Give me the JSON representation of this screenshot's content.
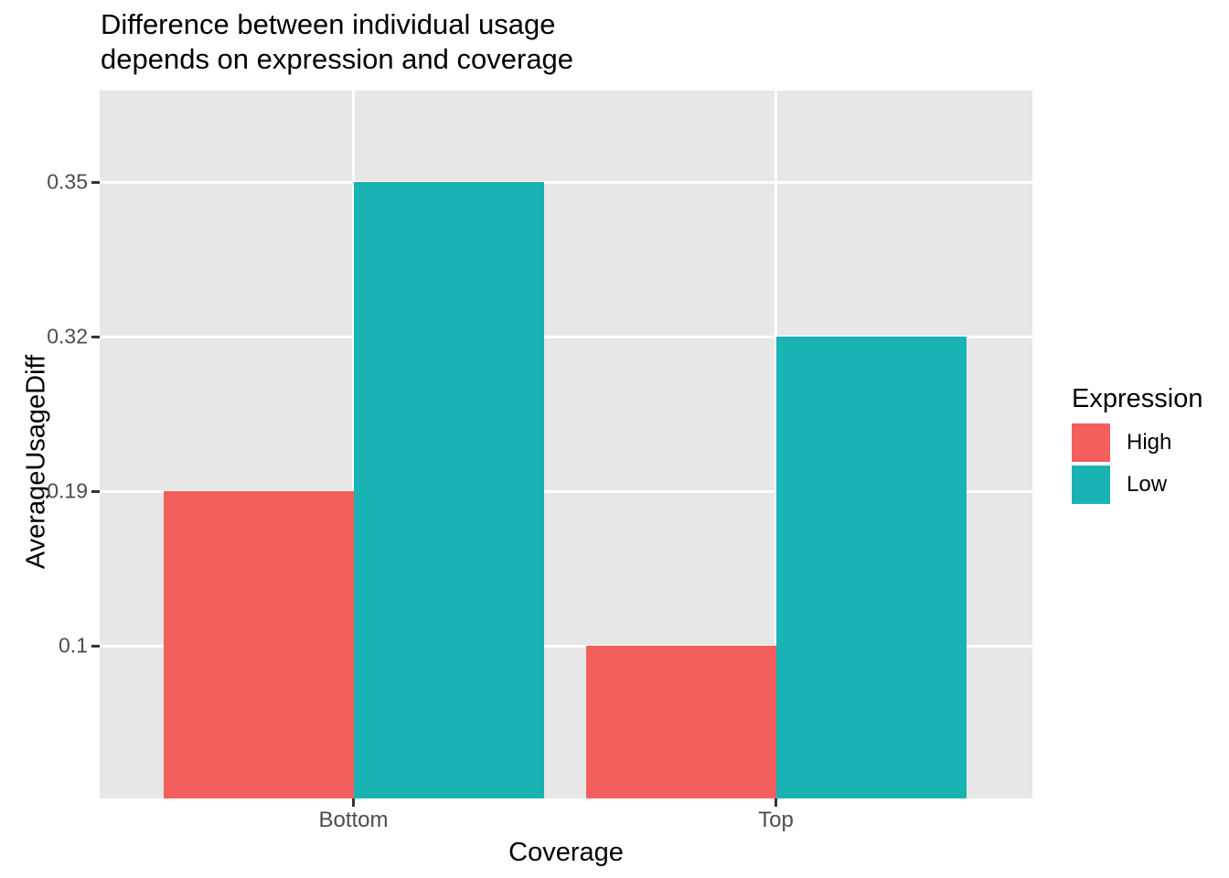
{
  "title": {
    "line1": "Difference between individual usage",
    "line2": "depends on expression and coverage"
  },
  "chart_data": {
    "type": "bar",
    "title": "Difference between individual usage depends on expression and coverage",
    "xlabel": "Coverage",
    "ylabel": "AverageUsageDiff",
    "categories": [
      "Bottom",
      "Top"
    ],
    "series": [
      {
        "name": "High",
        "color": "#F25F5C",
        "values": [
          0.19,
          0.1
        ]
      },
      {
        "name": "Low",
        "color": "#1AB3B4",
        "values": [
          0.35,
          0.32
        ]
      }
    ],
    "yticks": [
      0.35,
      0.32,
      0.19,
      0.1
    ],
    "yticks_evenly_spaced": true,
    "legend": {
      "title": "Expression",
      "position": "right"
    },
    "grid": true,
    "panel_bg": "#E7E7E7",
    "grid_color": "#FFFFFF",
    "tick_color": "#333333",
    "tick_label_color": "#4D4D4D"
  }
}
